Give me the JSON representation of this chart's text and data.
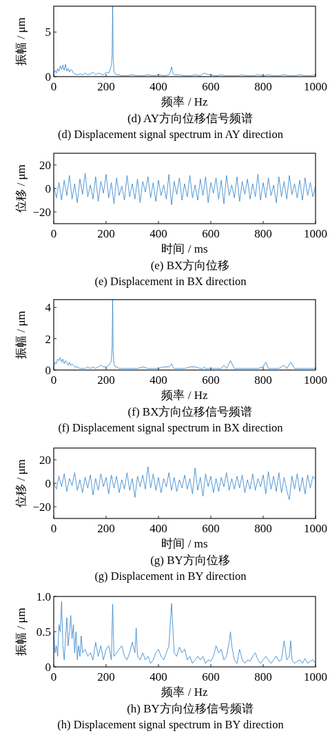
{
  "chart_data": [
    {
      "type": "line",
      "title": "(d) AY方向位移信号频谱",
      "subtitle": "(d) Displacement signal spectrum in AY direction",
      "xlabel": "频率 / Hz",
      "ylabel": "振幅 / μm",
      "xlim": [
        0,
        1000
      ],
      "xticks": [
        0,
        200,
        400,
        600,
        800,
        1000
      ],
      "ylim": [
        0,
        7.9
      ],
      "yticks": [
        0,
        5
      ],
      "series": [
        {
          "color": "#2a7fc9",
          "x": [
            0,
            5,
            10,
            15,
            20,
            25,
            30,
            35,
            40,
            45,
            50,
            55,
            60,
            65,
            70,
            75,
            80,
            90,
            100,
            110,
            120,
            130,
            140,
            150,
            160,
            170,
            180,
            190,
            200,
            210,
            215,
            220,
            223,
            225,
            227,
            230,
            235,
            240,
            250,
            260,
            280,
            300,
            320,
            340,
            360,
            380,
            400,
            420,
            440,
            445,
            450,
            455,
            460,
            480,
            500,
            520,
            540,
            560,
            570,
            575,
            580,
            600,
            620,
            640,
            660,
            680,
            700,
            720,
            740,
            760,
            780,
            800,
            820,
            840,
            860,
            880,
            900,
            920,
            940,
            960,
            980,
            1000
          ],
          "values": [
            0.3,
            0.7,
            0.4,
            0.9,
            0.6,
            1.2,
            0.8,
            1.3,
            0.7,
            1.4,
            0.6,
            0.9,
            0.5,
            0.8,
            0.7,
            0.4,
            0.3,
            0.2,
            0.3,
            0.2,
            0.4,
            0.2,
            0.3,
            0.5,
            0.2,
            0.4,
            0.3,
            0.2,
            0.5,
            0.4,
            0.8,
            1.2,
            2.5,
            7.9,
            2.2,
            0.6,
            0.3,
            0.2,
            0.2,
            0.1,
            0.1,
            0.2,
            0.1,
            0.1,
            0.2,
            0.1,
            0.2,
            0.1,
            0.2,
            0.5,
            1.1,
            0.4,
            0.2,
            0.2,
            0.1,
            0.1,
            0.2,
            0.1,
            0.3,
            0.4,
            0.3,
            0.2,
            0.1,
            0.2,
            0.1,
            0.1,
            0.1,
            0.2,
            0.1,
            0.1,
            0.2,
            0.1,
            0.2,
            0.1,
            0.1,
            0.2,
            0.1,
            0.1,
            0.2,
            0.1,
            0.1,
            0.2
          ]
        }
      ]
    },
    {
      "type": "line",
      "title": "(e) BX方向位移",
      "subtitle": "(e) Displacement in BX direction",
      "xlabel": "时间 / ms",
      "ylabel": "位移 / μm",
      "xlim": [
        0,
        1000
      ],
      "xticks": [
        0,
        200,
        400,
        600,
        800,
        1000
      ],
      "ylim": [
        -30,
        30
      ],
      "yticks": [
        -20,
        0,
        20
      ],
      "series": [
        {
          "color": "#2a7fc9",
          "x": [
            0,
            10,
            20,
            30,
            40,
            50,
            60,
            70,
            80,
            90,
            100,
            110,
            120,
            130,
            140,
            150,
            160,
            170,
            180,
            190,
            200,
            210,
            220,
            230,
            240,
            250,
            260,
            270,
            280,
            290,
            300,
            310,
            320,
            330,
            340,
            350,
            360,
            370,
            380,
            390,
            400,
            410,
            420,
            430,
            440,
            450,
            460,
            470,
            480,
            490,
            500,
            510,
            520,
            530,
            540,
            550,
            560,
            570,
            580,
            590,
            600,
            610,
            620,
            630,
            640,
            650,
            660,
            670,
            680,
            690,
            700,
            710,
            720,
            730,
            740,
            750,
            760,
            770,
            780,
            790,
            800,
            810,
            820,
            830,
            840,
            850,
            860,
            870,
            880,
            890,
            900,
            910,
            920,
            930,
            940,
            950,
            960,
            970,
            980,
            990,
            1000
          ],
          "values": [
            2,
            -8,
            5,
            -10,
            7,
            -6,
            11,
            -9,
            4,
            -12,
            8,
            -5,
            13,
            -7,
            3,
            -9,
            10,
            -11,
            6,
            -4,
            12,
            -8,
            5,
            -13,
            9,
            -6,
            2,
            -10,
            11,
            -7,
            4,
            -9,
            8,
            -12,
            6,
            -3,
            10,
            -8,
            5,
            -11,
            7,
            -6,
            3,
            -9,
            12,
            -14,
            6,
            -5,
            9,
            -10,
            4,
            -7,
            11,
            -8,
            3,
            -10,
            8,
            -6,
            10,
            -12,
            5,
            -4,
            9,
            -9,
            7,
            -13,
            11,
            -6,
            3,
            -8,
            10,
            -11,
            6,
            -5,
            8,
            -9,
            4,
            -7,
            12,
            -10,
            5,
            -8,
            9,
            -6,
            3,
            -12,
            10,
            -7,
            6,
            -9,
            11,
            -5,
            4,
            -8,
            7,
            -10,
            9,
            -6,
            5,
            -7,
            2
          ]
        }
      ]
    },
    {
      "type": "line",
      "title": "(f) BX方向位移信号频谱",
      "subtitle": "(f) Displacement signal spectrum in BX direction",
      "xlabel": "频率 / Hz",
      "ylabel": "振幅 / μm",
      "xlim": [
        0,
        1000
      ],
      "xticks": [
        0,
        200,
        400,
        600,
        800,
        1000
      ],
      "ylim": [
        0,
        4.5
      ],
      "yticks": [
        0,
        2,
        4
      ],
      "series": [
        {
          "color": "#2a7fc9",
          "x": [
            0,
            5,
            10,
            15,
            20,
            25,
            30,
            35,
            40,
            45,
            50,
            55,
            60,
            65,
            70,
            75,
            80,
            90,
            100,
            110,
            120,
            130,
            140,
            150,
            160,
            170,
            180,
            190,
            200,
            210,
            215,
            220,
            223,
            225,
            227,
            230,
            235,
            240,
            250,
            260,
            280,
            300,
            320,
            340,
            360,
            380,
            400,
            420,
            440,
            445,
            450,
            455,
            460,
            480,
            500,
            520,
            540,
            560,
            570,
            575,
            580,
            600,
            620,
            640,
            650,
            660,
            675,
            690,
            700,
            720,
            740,
            760,
            780,
            800,
            805,
            810,
            815,
            820,
            840,
            860,
            880,
            890,
            905,
            920,
            940,
            960,
            980,
            1000
          ],
          "values": [
            0.2,
            0.5,
            0.4,
            0.7,
            0.6,
            0.8,
            0.5,
            0.7,
            0.4,
            0.6,
            0.5,
            0.3,
            0.5,
            0.3,
            0.4,
            0.3,
            0.2,
            0.2,
            0.1,
            0.1,
            0.1,
            0.2,
            0.1,
            0.2,
            0.1,
            0.2,
            0.3,
            0.2,
            0.2,
            0.3,
            0.4,
            0.6,
            1.5,
            4.5,
            1.2,
            0.4,
            0.2,
            0.2,
            0.1,
            0.1,
            0.1,
            0.1,
            0.1,
            0.2,
            0.1,
            0.1,
            0.1,
            0.2,
            0.2,
            0.3,
            0.4,
            0.2,
            0.1,
            0.1,
            0.1,
            0.2,
            0.2,
            0.1,
            0.1,
            0.2,
            0.1,
            0.1,
            0.1,
            0.1,
            0.3,
            0.1,
            0.6,
            0.1,
            0.1,
            0.1,
            0.1,
            0.1,
            0.1,
            0.2,
            0.4,
            0.5,
            0.3,
            0.1,
            0.1,
            0.1,
            0.3,
            0.1,
            0.5,
            0.1,
            0.1,
            0.1,
            0.1,
            0.1
          ]
        }
      ]
    },
    {
      "type": "line",
      "title": "(g) BY方向位移",
      "subtitle": "(g) Displacement in BY direction",
      "xlabel": "时间 / ms",
      "ylabel": "位移 / μm",
      "xlim": [
        0,
        1000
      ],
      "xticks": [
        0,
        200,
        400,
        600,
        800,
        1000
      ],
      "ylim": [
        -30,
        30
      ],
      "yticks": [
        -20,
        0,
        20
      ],
      "series": [
        {
          "color": "#2a7fc9",
          "x": [
            0,
            10,
            20,
            30,
            40,
            50,
            60,
            70,
            80,
            90,
            100,
            110,
            120,
            130,
            140,
            150,
            160,
            170,
            180,
            190,
            200,
            210,
            220,
            230,
            240,
            250,
            260,
            270,
            280,
            290,
            300,
            310,
            320,
            330,
            340,
            350,
            360,
            370,
            380,
            390,
            400,
            410,
            420,
            430,
            440,
            450,
            460,
            470,
            480,
            490,
            500,
            510,
            520,
            530,
            540,
            550,
            560,
            570,
            580,
            590,
            600,
            610,
            620,
            630,
            640,
            650,
            660,
            670,
            680,
            690,
            700,
            710,
            720,
            730,
            740,
            750,
            760,
            770,
            780,
            790,
            800,
            810,
            820,
            830,
            840,
            850,
            860,
            870,
            880,
            890,
            900,
            910,
            920,
            930,
            940,
            950,
            960,
            970,
            980,
            990,
            1000
          ],
          "values": [
            0,
            -5,
            6,
            -3,
            8,
            -7,
            4,
            -2,
            9,
            -6,
            3,
            -8,
            5,
            -4,
            7,
            -10,
            4,
            -6,
            8,
            -3,
            5,
            -9,
            7,
            -4,
            6,
            -8,
            3,
            -5,
            9,
            -6,
            4,
            -12,
            6,
            -3,
            7,
            -5,
            14,
            -4,
            8,
            -6,
            5,
            -8,
            4,
            -3,
            9,
            -6,
            5,
            -7,
            3,
            -4,
            7,
            -5,
            4,
            -9,
            13,
            -6,
            5,
            -11,
            8,
            -3,
            6,
            -8,
            4,
            -7,
            5,
            -3,
            9,
            -6,
            4,
            -5,
            6,
            -4,
            7,
            -8,
            3,
            -5,
            8,
            -6,
            4,
            -3,
            7,
            -9,
            10,
            -5,
            6,
            -7,
            9,
            -8,
            5,
            -6,
            -14,
            6,
            -5,
            8,
            -7,
            5,
            -9,
            7,
            -4,
            6,
            3
          ]
        }
      ]
    },
    {
      "type": "line",
      "title": "(h) BY方向位移信号频谱",
      "subtitle": "(h) Displacement signal spectrum in BY direction",
      "xlabel": "频率 / Hz",
      "ylabel": "振幅 / μm",
      "xlim": [
        0,
        1000
      ],
      "xticks": [
        0,
        200,
        400,
        600,
        800,
        1000
      ],
      "ylim": [
        0,
        1
      ],
      "yticks": [
        0,
        0.5,
        {
          "value": 1,
          "label": "1.0"
        }
      ],
      "series": [
        {
          "color": "#2a7fc9",
          "x": [
            0,
            5,
            10,
            15,
            20,
            25,
            30,
            35,
            40,
            45,
            50,
            55,
            60,
            65,
            70,
            75,
            80,
            85,
            90,
            95,
            100,
            105,
            110,
            120,
            130,
            140,
            150,
            160,
            170,
            180,
            190,
            200,
            210,
            220,
            225,
            230,
            240,
            250,
            260,
            270,
            280,
            290,
            300,
            310,
            315,
            320,
            330,
            340,
            350,
            360,
            370,
            380,
            390,
            400,
            410,
            420,
            430,
            440,
            450,
            460,
            470,
            480,
            490,
            500,
            510,
            520,
            530,
            540,
            550,
            560,
            570,
            580,
            590,
            600,
            610,
            620,
            630,
            640,
            650,
            660,
            670,
            675,
            680,
            690,
            700,
            710,
            720,
            730,
            740,
            750,
            760,
            770,
            780,
            790,
            800,
            810,
            820,
            830,
            840,
            850,
            860,
            870,
            880,
            890,
            900,
            905,
            910,
            920,
            930,
            940,
            950,
            960,
            970,
            980,
            990,
            1000
          ],
          "values": [
            0.5,
            0.2,
            0.3,
            0.15,
            0.6,
            0.5,
            0.93,
            0.3,
            0.1,
            0.4,
            0.7,
            0.3,
            0.5,
            0.73,
            0.4,
            0.6,
            0.2,
            0.5,
            0.1,
            0.3,
            0.15,
            0.44,
            0.2,
            0.25,
            0.15,
            0.2,
            0.1,
            0.35,
            0.15,
            0.3,
            0.1,
            0.25,
            0.3,
            0.1,
            0.89,
            0.15,
            0.2,
            0.25,
            0.3,
            0.15,
            0.1,
            0.2,
            0.35,
            0.2,
            0.55,
            0.15,
            0.1,
            0.2,
            0.1,
            0.15,
            0.05,
            0.1,
            0.2,
            0.25,
            0.15,
            0.1,
            0.2,
            0.3,
            0.9,
            0.2,
            0.15,
            0.28,
            0.2,
            0.25,
            0.1,
            0.15,
            0.05,
            0.1,
            0.15,
            0.1,
            0.15,
            0.05,
            0.1,
            0.08,
            0.15,
            0.3,
            0.2,
            0.25,
            0.1,
            0.15,
            0.35,
            0.5,
            0.3,
            0.1,
            0.05,
            0.25,
            0.1,
            0.05,
            0.1,
            0.08,
            0.15,
            0.2,
            0.1,
            0.05,
            0.1,
            0.15,
            0.1,
            0.05,
            0.1,
            0.15,
            0.08,
            0.1,
            0.37,
            0.1,
            0.15,
            0.37,
            0.1,
            0.05,
            0.08,
            0.1,
            0.05,
            0.12,
            0.05,
            0.08,
            0.1,
            0.05
          ]
        }
      ]
    }
  ]
}
